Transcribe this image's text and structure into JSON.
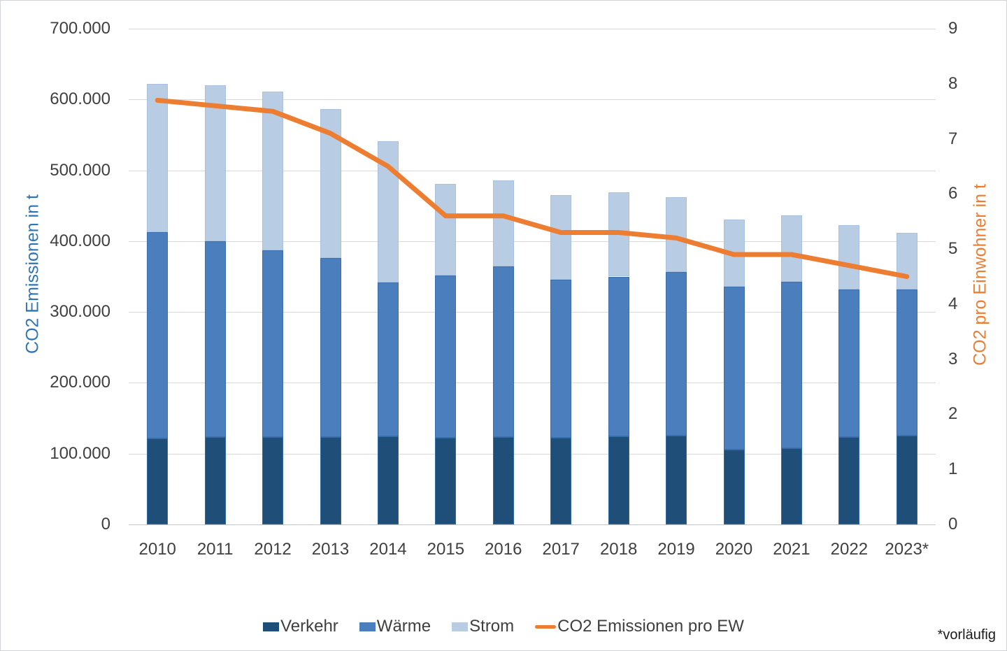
{
  "chart_data": [
    {
      "type": "bar",
      "stacked": true,
      "categories": [
        "2010",
        "2011",
        "2012",
        "2013",
        "2014",
        "2015",
        "2016",
        "2017",
        "2018",
        "2019",
        "2020",
        "2021",
        "2022",
        "2023*"
      ],
      "series": [
        {
          "name": "Verkehr",
          "color": "#1f4e79",
          "values": [
            121000,
            123000,
            123000,
            123000,
            124000,
            122000,
            123000,
            122000,
            124000,
            125000,
            106000,
            108000,
            123000,
            125000
          ]
        },
        {
          "name": "Wärme",
          "color": "#4a7ebd",
          "values": [
            292000,
            277000,
            264000,
            253000,
            218000,
            229000,
            241000,
            224000,
            226000,
            231000,
            230000,
            235000,
            209000,
            207000
          ]
        },
        {
          "name": "Strom",
          "color": "#b8cce4",
          "values": [
            209000,
            220000,
            224000,
            210000,
            199000,
            130000,
            122000,
            119000,
            119000,
            106000,
            94000,
            93000,
            91000,
            80000
          ]
        }
      ],
      "ylabel": "CO2 Emissionen in t",
      "ylim": [
        0,
        700000
      ],
      "ytick_labels": [
        "0",
        "100.000",
        "200.000",
        "300.000",
        "400.000",
        "500.000",
        "600.000",
        "700.000"
      ],
      "grid": true,
      "legend_position": "bottom"
    },
    {
      "type": "line",
      "categories": [
        "2010",
        "2011",
        "2012",
        "2013",
        "2014",
        "2015",
        "2016",
        "2017",
        "2018",
        "2019",
        "2020",
        "2021",
        "2022",
        "2023*"
      ],
      "series": [
        {
          "name": "CO2 Emissionen pro EW",
          "color": "#ed7d31",
          "values": [
            7.7,
            7.6,
            7.5,
            7.1,
            6.5,
            5.6,
            5.6,
            5.3,
            5.3,
            5.2,
            4.9,
            4.9,
            4.7,
            4.5
          ]
        }
      ],
      "ylabel": "CO2  pro Einwohner in t",
      "ylim": [
        0,
        9
      ],
      "ytick_labels": [
        "0",
        "1",
        "2",
        "3",
        "4",
        "5",
        "6",
        "7",
        "8",
        "9"
      ]
    }
  ],
  "left_axis": {
    "title": "CO2 Emissionen in t",
    "title_color": "#2e75b6"
  },
  "right_axis": {
    "title": "CO2  pro Einwohner in t",
    "title_color": "#ed7d31"
  },
  "legend": {
    "items": [
      {
        "label": "Verkehr",
        "swatch": "box",
        "color": "#1f4e79"
      },
      {
        "label": "Wärme",
        "swatch": "box",
        "color": "#4a7ebd"
      },
      {
        "label": "Strom",
        "swatch": "box",
        "color": "#b8cce4"
      },
      {
        "label": "CO2 Emissionen pro EW",
        "swatch": "line",
        "color": "#ed7d31"
      }
    ]
  },
  "footnote": "*vorläufig",
  "colors": {
    "gridline": "#d9d9d9",
    "tick_text": "#404040",
    "bar_border_dark": "#2e6da4",
    "bar_border_mid": "#3d6fae",
    "bar_border_light": "#a9c0de"
  }
}
